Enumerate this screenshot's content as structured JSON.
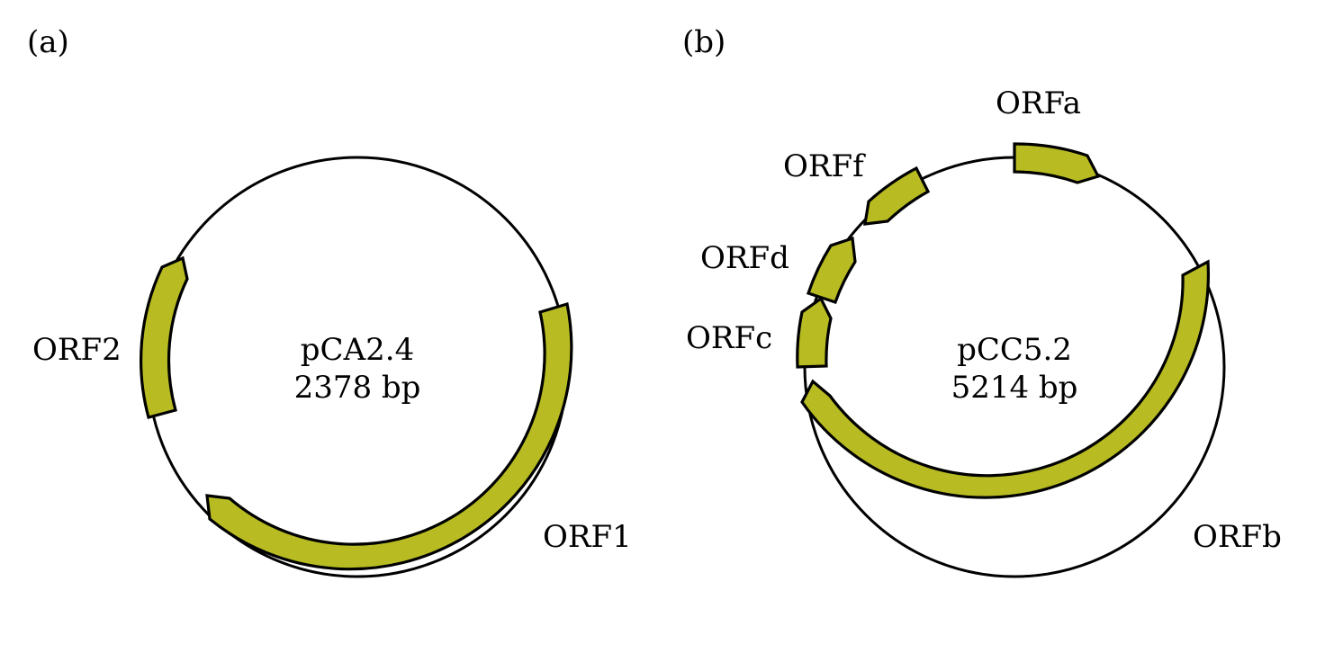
{
  "colors": {
    "orf_fill": "#b8bc22",
    "stroke": "#000000",
    "background": "#ffffff"
  },
  "panels": [
    {
      "tag": "(a)",
      "name": "pCA2.4",
      "size": "2378 bp",
      "orfs": [
        {
          "label": "ORF1"
        },
        {
          "label": "ORF2"
        }
      ]
    },
    {
      "tag": "(b)",
      "name": "pCC5.2",
      "size": "5214 bp",
      "orfs": [
        {
          "label": "ORFa"
        },
        {
          "label": "ORFb"
        },
        {
          "label": "ORFc"
        },
        {
          "label": "ORFd"
        },
        {
          "label": "ORFf"
        }
      ]
    }
  ]
}
